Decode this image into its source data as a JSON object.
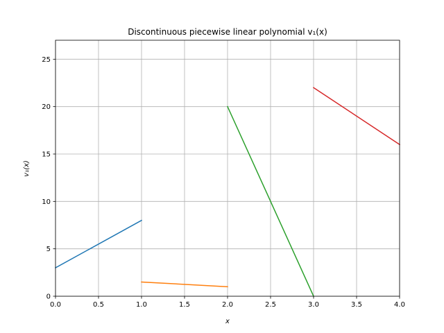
{
  "chart_data": {
    "type": "line",
    "title": "Discontinuous piecewise linear polynomial v₁(x)",
    "xlabel": "x",
    "ylabel": "v₁(x)",
    "xlim": [
      0,
      4
    ],
    "ylim": [
      0,
      27
    ],
    "xticks": [
      "0.0",
      "0.5",
      "1.0",
      "1.5",
      "2.0",
      "2.5",
      "3.0",
      "3.5",
      "4.0"
    ],
    "yticks": [
      "0",
      "5",
      "10",
      "15",
      "20",
      "25"
    ],
    "grid": true,
    "series": [
      {
        "color": "#1f77b4",
        "x": [
          0,
          1
        ],
        "y": [
          3,
          8
        ]
      },
      {
        "color": "#ff7f0e",
        "x": [
          1,
          2
        ],
        "y": [
          1.5,
          1
        ]
      },
      {
        "color": "#2ca02c",
        "x": [
          2,
          3
        ],
        "y": [
          20,
          0
        ]
      },
      {
        "color": "#d62728",
        "x": [
          3,
          4
        ],
        "y": [
          22,
          16
        ]
      }
    ]
  }
}
